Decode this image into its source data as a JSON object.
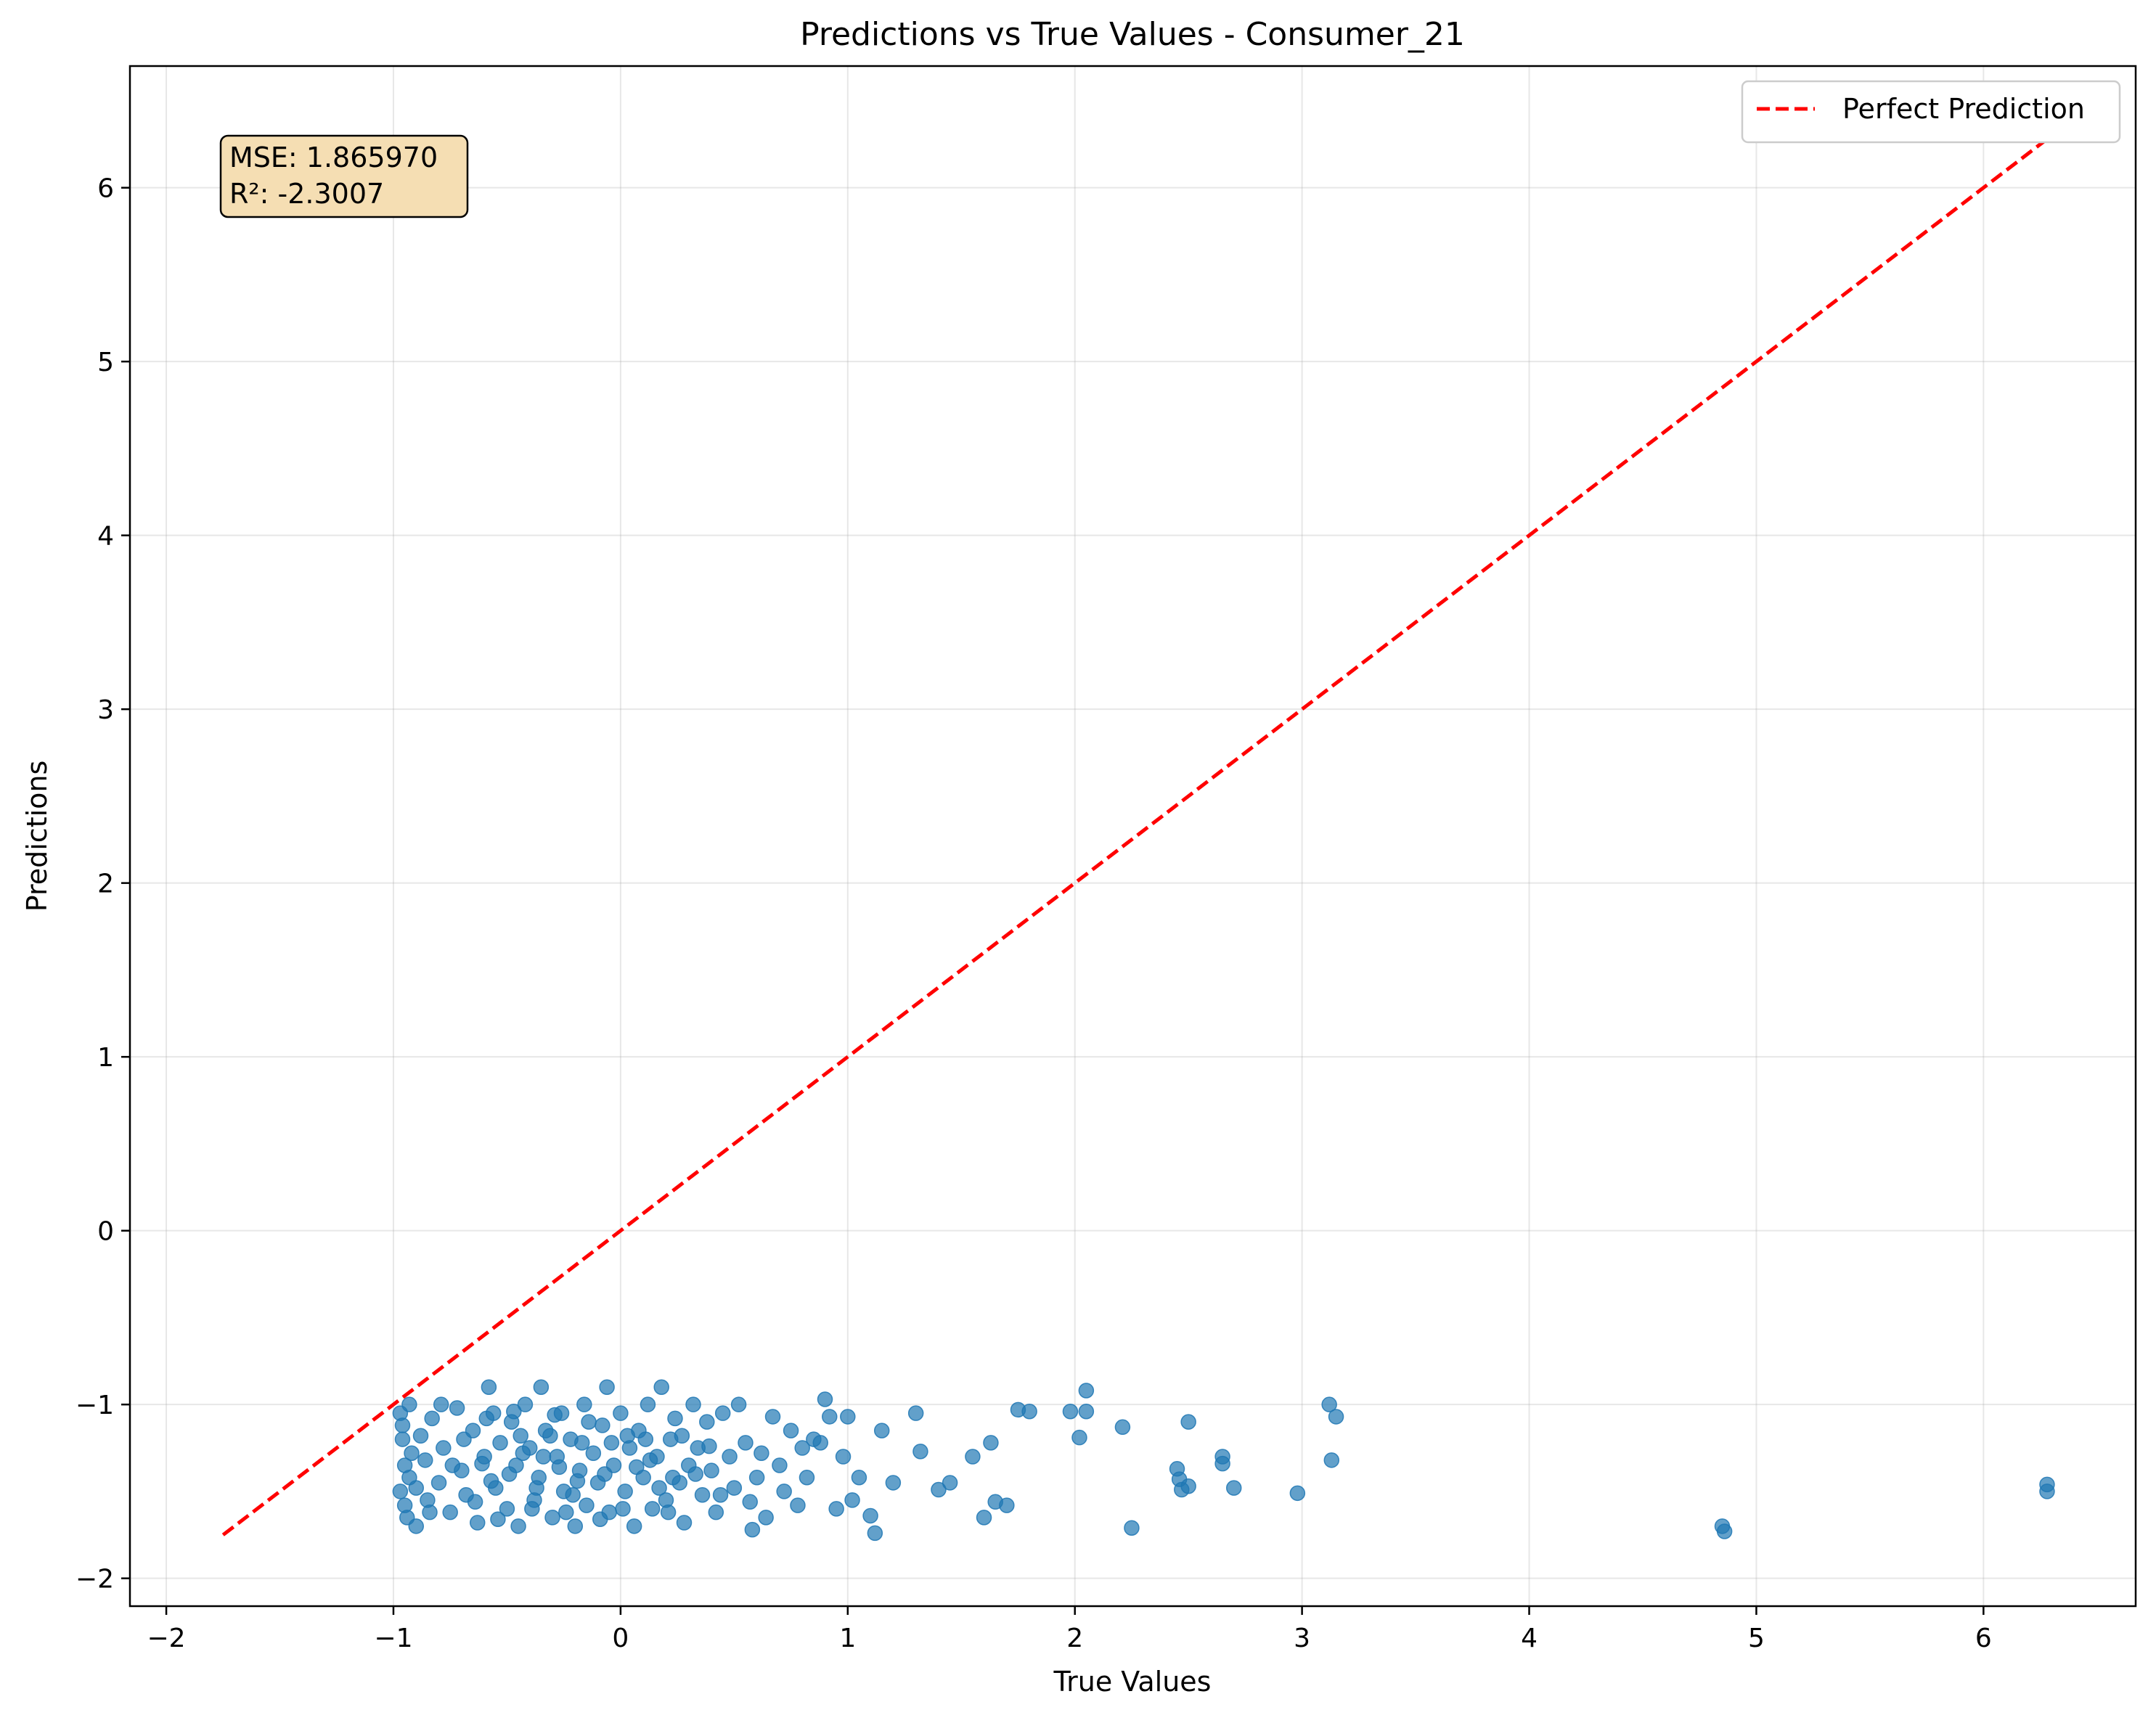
{
  "chart_data": {
    "type": "scatter",
    "title": "Predictions vs True Values - Consumer_21",
    "xlabel": "True Values",
    "ylabel": "Predictions",
    "xlim": [
      -2.16,
      6.67
    ],
    "ylim": [
      -2.16,
      6.7
    ],
    "xticks": [
      -2,
      -1,
      0,
      1,
      2,
      3,
      4,
      5,
      6
    ],
    "yticks": [
      -2,
      -1,
      0,
      1,
      2,
      3,
      4,
      5,
      6
    ],
    "xtick_labels": [
      "−2",
      "−1",
      "0",
      "1",
      "2",
      "3",
      "4",
      "5",
      "6"
    ],
    "ytick_labels": [
      "−2",
      "−1",
      "0",
      "1",
      "2",
      "3",
      "4",
      "5",
      "6"
    ],
    "grid": true,
    "legend": {
      "position": "top-right",
      "entries": [
        "Perfect Prediction"
      ]
    },
    "stats_box": {
      "mse": "MSE: 1.865970",
      "r2": "R²: -2.3007"
    },
    "reference_line": {
      "name": "Perfect Prediction",
      "x": [
        -1.75,
        6.28
      ],
      "y": [
        -1.75,
        6.28
      ],
      "color": "#ff0000",
      "style": "dashed"
    },
    "points_color": "#1f77b4",
    "points": [
      [
        -0.97,
        -1.05
      ],
      [
        -0.96,
        -1.2
      ],
      [
        -0.95,
        -1.35
      ],
      [
        -0.97,
        -1.5
      ],
      [
        -0.94,
        -1.65
      ],
      [
        -0.93,
        -1.0
      ],
      [
        -0.92,
        -1.28
      ],
      [
        -0.95,
        -1.58
      ],
      [
        -0.96,
        -1.12
      ],
      [
        -0.93,
        -1.42
      ],
      [
        -0.9,
        -1.7
      ],
      [
        -0.88,
        -1.18
      ],
      [
        -0.86,
        -1.32
      ],
      [
        -0.85,
        -1.55
      ],
      [
        -0.83,
        -1.08
      ],
      [
        -0.8,
        -1.45
      ],
      [
        -0.78,
        -1.25
      ],
      [
        -0.75,
        -1.62
      ],
      [
        -0.72,
        -1.02
      ],
      [
        -0.7,
        -1.38
      ],
      [
        -0.68,
        -1.52
      ],
      [
        -0.65,
        -1.15
      ],
      [
        -0.63,
        -1.68
      ],
      [
        -0.6,
        -1.3
      ],
      [
        -0.58,
        -0.9
      ],
      [
        -0.56,
        -1.05
      ],
      [
        -0.55,
        -1.48
      ],
      [
        -0.53,
        -1.22
      ],
      [
        -0.5,
        -1.6
      ],
      [
        -0.48,
        -1.1
      ],
      [
        -0.46,
        -1.35
      ],
      [
        -0.45,
        -1.7
      ],
      [
        -0.42,
        -1.0
      ],
      [
        -0.4,
        -1.25
      ],
      [
        -0.38,
        -1.55
      ],
      [
        -0.36,
        -1.42
      ],
      [
        -0.35,
        -0.9
      ],
      [
        -0.33,
        -1.15
      ],
      [
        -0.3,
        -1.65
      ],
      [
        -0.28,
        -1.3
      ],
      [
        -0.26,
        -1.05
      ],
      [
        -0.25,
        -1.5
      ],
      [
        -0.22,
        -1.2
      ],
      [
        -0.2,
        -1.7
      ],
      [
        -0.18,
        -1.38
      ],
      [
        -0.16,
        -1.0
      ],
      [
        -0.15,
        -1.58
      ],
      [
        -0.12,
        -1.28
      ],
      [
        -0.1,
        -1.45
      ],
      [
        -0.08,
        -1.12
      ],
      [
        -0.06,
        -0.9
      ],
      [
        -0.05,
        -1.62
      ],
      [
        -0.03,
        -1.35
      ],
      [
        0.0,
        -1.05
      ],
      [
        0.02,
        -1.5
      ],
      [
        0.04,
        -1.25
      ],
      [
        0.06,
        -1.7
      ],
      [
        0.08,
        -1.15
      ],
      [
        0.1,
        -1.42
      ],
      [
        0.12,
        -1.0
      ],
      [
        0.14,
        -1.6
      ],
      [
        0.16,
        -1.3
      ],
      [
        0.18,
        -0.9
      ],
      [
        0.2,
        -1.55
      ],
      [
        0.22,
        -1.2
      ],
      [
        0.24,
        -1.08
      ],
      [
        0.26,
        -1.45
      ],
      [
        0.28,
        -1.68
      ],
      [
        0.3,
        -1.35
      ],
      [
        0.32,
        -1.0
      ],
      [
        0.34,
        -1.25
      ],
      [
        0.36,
        -1.52
      ],
      [
        0.38,
        -1.1
      ],
      [
        0.4,
        -1.38
      ],
      [
        0.42,
        -1.62
      ],
      [
        0.45,
        -1.05
      ],
      [
        0.48,
        -1.3
      ],
      [
        0.5,
        -1.48
      ],
      [
        0.52,
        -1.0
      ],
      [
        0.55,
        -1.22
      ],
      [
        0.57,
        -1.56
      ],
      [
        0.58,
        -1.72
      ],
      [
        0.6,
        -1.42
      ],
      [
        0.62,
        -1.28
      ],
      [
        0.64,
        -1.65
      ],
      [
        0.67,
        -1.07
      ],
      [
        0.7,
        -1.35
      ],
      [
        0.72,
        -1.5
      ],
      [
        0.75,
        -1.15
      ],
      [
        0.78,
        -1.58
      ],
      [
        0.8,
        -1.25
      ],
      [
        0.82,
        -1.42
      ],
      [
        0.85,
        -1.2
      ],
      [
        0.88,
        -1.22
      ],
      [
        0.9,
        -0.97
      ],
      [
        0.92,
        -1.07
      ],
      [
        0.95,
        -1.6
      ],
      [
        0.98,
        -1.3
      ],
      [
        1.0,
        -1.07
      ],
      [
        1.02,
        -1.55
      ],
      [
        1.05,
        -1.42
      ],
      [
        1.1,
        -1.64
      ],
      [
        1.12,
        -1.74
      ],
      [
        1.15,
        -1.15
      ],
      [
        1.2,
        -1.45
      ],
      [
        1.3,
        -1.05
      ],
      [
        1.32,
        -1.27
      ],
      [
        1.4,
        -1.49
      ],
      [
        1.45,
        -1.45
      ],
      [
        1.55,
        -1.3
      ],
      [
        1.6,
        -1.65
      ],
      [
        1.63,
        -1.22
      ],
      [
        1.65,
        -1.56
      ],
      [
        1.7,
        -1.58
      ],
      [
        1.75,
        -1.03
      ],
      [
        1.8,
        -1.04
      ],
      [
        1.98,
        -1.04
      ],
      [
        2.02,
        -1.19
      ],
      [
        2.05,
        -0.92
      ],
      [
        2.05,
        -1.04
      ],
      [
        2.21,
        -1.13
      ],
      [
        2.25,
        -1.71
      ],
      [
        2.45,
        -1.37
      ],
      [
        2.46,
        -1.43
      ],
      [
        2.47,
        -1.49
      ],
      [
        2.5,
        -1.47
      ],
      [
        2.5,
        -1.1
      ],
      [
        2.65,
        -1.3
      ],
      [
        2.65,
        -1.34
      ],
      [
        2.7,
        -1.48
      ],
      [
        2.98,
        -1.51
      ],
      [
        3.12,
        -1.0
      ],
      [
        3.13,
        -1.32
      ],
      [
        3.15,
        -1.07
      ],
      [
        4.85,
        -1.7
      ],
      [
        4.86,
        -1.73
      ],
      [
        6.28,
        -1.46
      ],
      [
        6.28,
        -1.5
      ],
      [
        -0.9,
        -1.48
      ],
      [
        -0.84,
        -1.62
      ],
      [
        -0.79,
        -1.0
      ],
      [
        -0.74,
        -1.35
      ],
      [
        -0.69,
        -1.2
      ],
      [
        -0.64,
        -1.56
      ],
      [
        -0.59,
        -1.08
      ],
      [
        -0.54,
        -1.66
      ],
      [
        -0.49,
        -1.4
      ],
      [
        -0.44,
        -1.18
      ],
      [
        -0.39,
        -1.6
      ],
      [
        -0.34,
        -1.3
      ],
      [
        -0.29,
        -1.06
      ],
      [
        -0.24,
        -1.62
      ],
      [
        -0.19,
        -1.44
      ],
      [
        -0.14,
        -1.1
      ],
      [
        -0.09,
        -1.66
      ],
      [
        -0.04,
        -1.22
      ],
      [
        0.01,
        -1.6
      ],
      [
        0.07,
        -1.36
      ],
      [
        0.11,
        -1.2
      ],
      [
        0.17,
        -1.48
      ],
      [
        0.21,
        -1.62
      ],
      [
        0.27,
        -1.18
      ],
      [
        0.33,
        -1.4
      ],
      [
        0.39,
        -1.24
      ],
      [
        0.44,
        -1.52
      ],
      [
        -0.61,
        -1.34
      ],
      [
        -0.47,
        -1.04
      ],
      [
        -0.37,
        -1.48
      ],
      [
        -0.27,
        -1.36
      ],
      [
        -0.17,
        -1.22
      ],
      [
        -0.07,
        -1.4
      ],
      [
        0.03,
        -1.18
      ],
      [
        0.13,
        -1.32
      ],
      [
        0.23,
        -1.42
      ],
      [
        -0.57,
        -1.44
      ],
      [
        -0.43,
        -1.28
      ],
      [
        -0.31,
        -1.18
      ],
      [
        -0.21,
        -1.52
      ]
    ]
  }
}
